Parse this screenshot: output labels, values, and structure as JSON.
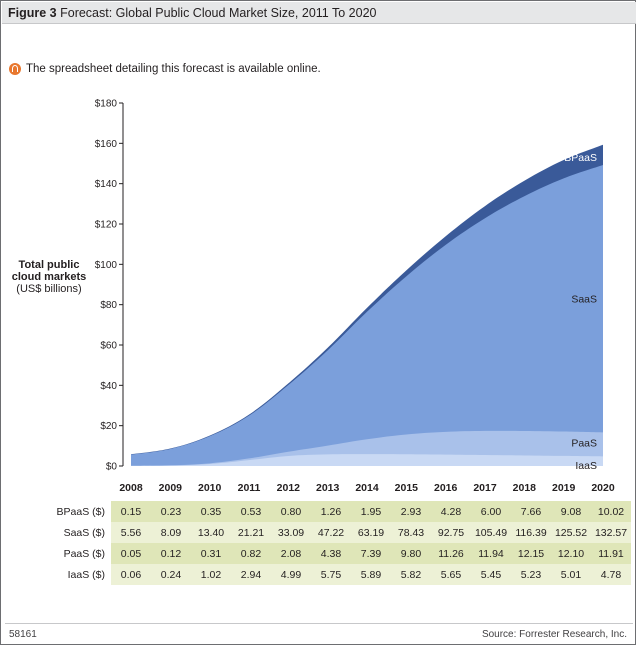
{
  "figure": {
    "label": "Figure 3",
    "title": "Forecast: Global Public Cloud Market Size, 2011 To 2020",
    "online_note": "The spreadsheet detailing this forecast is available online."
  },
  "axis": {
    "ylabel_bold": "Total public cloud markets",
    "ylabel_unit": "(US$ billions)"
  },
  "footer": {
    "id": "58161",
    "source": "Source: Forrester Research, Inc."
  },
  "colors": {
    "BPaaS": "#3a5a99",
    "SaaS": "#7b9fdb",
    "PaaS": "#a9c1ea",
    "IaaS": "#c9d9f4"
  },
  "chart_data": {
    "type": "area",
    "stacked": true,
    "title": "Forecast: Global Public Cloud Market Size, 2011 To 2020",
    "ylabel": "Total public cloud markets (US$ billions)",
    "ylim": [
      0,
      180
    ],
    "yticks": [
      0,
      20,
      40,
      60,
      80,
      100,
      120,
      140,
      160,
      180
    ],
    "ytick_labels": [
      "$0",
      "$20",
      "$40",
      "$60",
      "$80",
      "$100",
      "$120",
      "$140",
      "$160",
      "$180"
    ],
    "x": [
      "2008",
      "2009",
      "2010",
      "2011",
      "2012",
      "2013",
      "2014",
      "2015",
      "2016",
      "2017",
      "2018",
      "2019",
      "2020"
    ],
    "series": [
      {
        "name": "IaaS",
        "row_label": "IaaS ($)",
        "values": [
          0.06,
          0.24,
          1.02,
          2.94,
          4.99,
          5.75,
          5.89,
          5.82,
          5.65,
          5.45,
          5.23,
          5.01,
          4.78
        ],
        "display": [
          "0.06",
          "0.24",
          "1.02",
          "2.94",
          "4.99",
          "5.75",
          "5.89",
          "5.82",
          "5.65",
          "5.45",
          "5.23",
          "5.01",
          "4.78"
        ]
      },
      {
        "name": "PaaS",
        "row_label": "PaaS ($)",
        "values": [
          0.05,
          0.12,
          0.31,
          0.82,
          2.08,
          4.38,
          7.39,
          9.8,
          11.26,
          11.94,
          12.15,
          12.1,
          11.91
        ],
        "display": [
          "0.05",
          "0.12",
          "0.31",
          "0.82",
          "2.08",
          "4.38",
          "7.39",
          "9.80",
          "11.26",
          "11.94",
          "12.15",
          "12.10",
          "11.91"
        ]
      },
      {
        "name": "SaaS",
        "row_label": "SaaS ($)",
        "values": [
          5.56,
          8.09,
          13.4,
          21.21,
          33.09,
          47.22,
          63.19,
          78.43,
          92.75,
          105.49,
          116.39,
          125.52,
          132.57
        ],
        "display": [
          "5.56",
          "8.09",
          "13.40",
          "21.21",
          "33.09",
          "47.22",
          "63.19",
          "78.43",
          "92.75",
          "105.49",
          "116.39",
          "125.52",
          "132.57"
        ]
      },
      {
        "name": "BPaaS",
        "row_label": "BPaaS ($)",
        "values": [
          0.15,
          0.23,
          0.35,
          0.53,
          0.8,
          1.26,
          1.95,
          2.93,
          4.28,
          6.0,
          7.66,
          9.08,
          10.02
        ],
        "display": [
          "0.15",
          "0.23",
          "0.35",
          "0.53",
          "0.80",
          "1.26",
          "1.95",
          "2.93",
          "4.28",
          "6.00",
          "7.66",
          "9.08",
          "10.02"
        ]
      }
    ],
    "table_order": [
      "BPaaS",
      "SaaS",
      "PaaS",
      "IaaS"
    ],
    "grid": false,
    "legend": "inline labels at right edge"
  }
}
